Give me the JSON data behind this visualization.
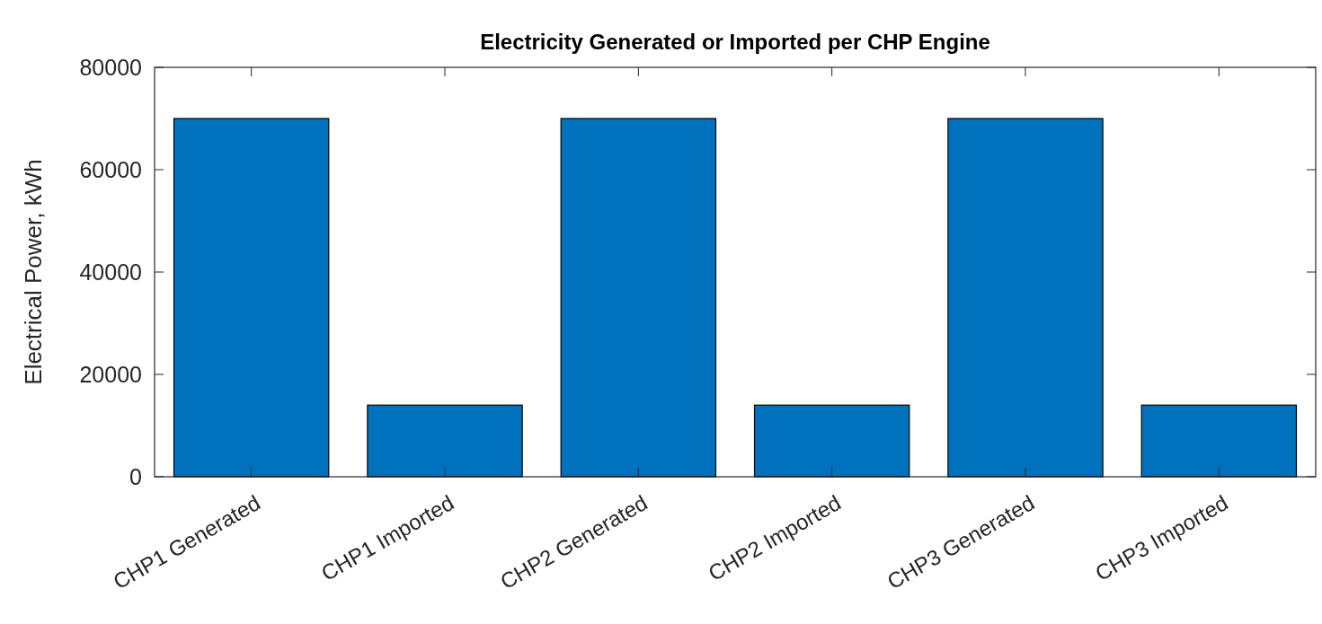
{
  "chart_data": {
    "type": "bar",
    "title": "Electricity Generated or Imported per CHP Engine",
    "ylabel": "Electrical Power, kWh",
    "categories": [
      "CHP1 Generated",
      "CHP1 Imported",
      "CHP2 Generated",
      "CHP2 Imported",
      "CHP3 Generated",
      "CHP3 Imported"
    ],
    "values": [
      70000,
      14000,
      70000,
      14000,
      70000,
      14000
    ],
    "color": "#0072bd",
    "ylim": [
      0,
      80000
    ],
    "yticks": [
      0,
      20000,
      40000,
      60000,
      80000
    ]
  }
}
